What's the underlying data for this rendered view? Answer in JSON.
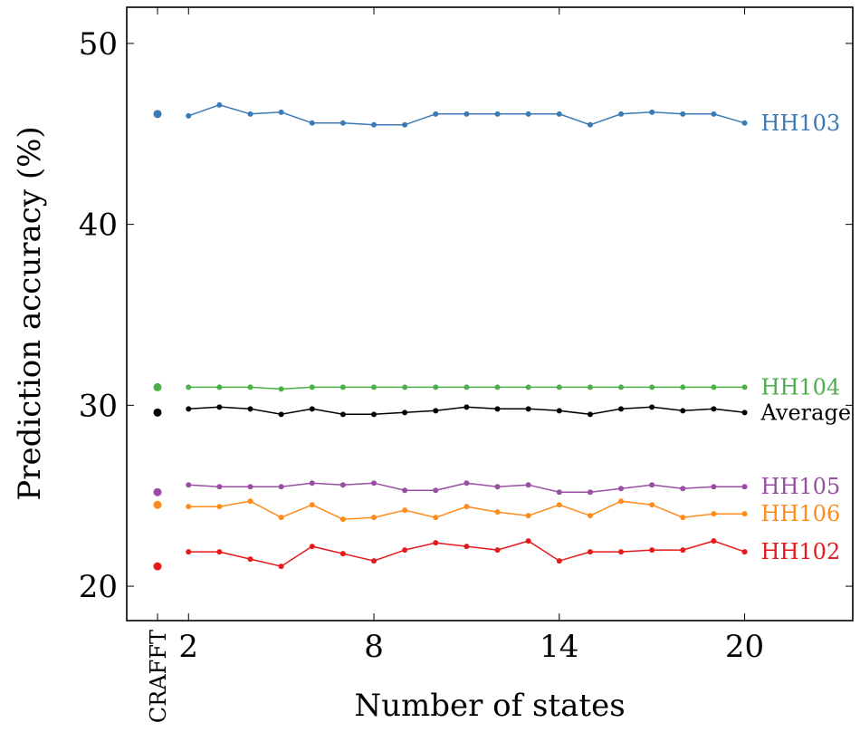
{
  "chart_data": {
    "type": "line",
    "xlabel": "Number of states",
    "ylabel": "Prediction accuracy (%)",
    "xlim": [
      0,
      23.5
    ],
    "ylim": [
      18.1,
      52
    ],
    "xticks": [
      2,
      8,
      14,
      20
    ],
    "yticks": [
      20,
      30,
      40,
      50
    ],
    "baseline_label": "CRAFFT",
    "x": [
      2,
      3,
      4,
      5,
      6,
      7,
      8,
      9,
      10,
      11,
      12,
      13,
      14,
      15,
      16,
      17,
      18,
      19,
      20
    ],
    "series": [
      {
        "name": "HH103",
        "color": "#3a7ab5",
        "baseline": 46.1,
        "values": [
          46.0,
          46.6,
          46.1,
          46.2,
          45.6,
          45.6,
          45.5,
          45.5,
          46.1,
          46.1,
          46.1,
          46.1,
          46.1,
          45.5,
          46.1,
          46.2,
          46.1,
          46.1,
          45.6
        ]
      },
      {
        "name": "HH104",
        "color": "#4daf4a",
        "baseline": 31.0,
        "values": [
          31.0,
          31.0,
          31.0,
          30.9,
          31.0,
          31.0,
          31.0,
          31.0,
          31.0,
          31.0,
          31.0,
          31.0,
          31.0,
          31.0,
          31.0,
          31.0,
          31.0,
          31.0,
          31.0
        ]
      },
      {
        "name": "Average",
        "color": "#000000",
        "baseline": 29.6,
        "values": [
          29.8,
          29.9,
          29.8,
          29.5,
          29.8,
          29.5,
          29.5,
          29.6,
          29.7,
          29.9,
          29.8,
          29.8,
          29.7,
          29.5,
          29.8,
          29.9,
          29.7,
          29.8,
          29.6
        ]
      },
      {
        "name": "HH105",
        "color": "#984ea3",
        "baseline": 25.2,
        "values": [
          25.6,
          25.5,
          25.5,
          25.5,
          25.7,
          25.6,
          25.7,
          25.3,
          25.3,
          25.7,
          25.5,
          25.6,
          25.2,
          25.2,
          25.4,
          25.6,
          25.4,
          25.5,
          25.5
        ]
      },
      {
        "name": "HH106",
        "color": "#ff8c1a",
        "baseline": 24.5,
        "values": [
          24.4,
          24.4,
          24.7,
          23.8,
          24.5,
          23.7,
          23.8,
          24.2,
          23.8,
          24.4,
          24.1,
          23.9,
          24.5,
          23.9,
          24.7,
          24.5,
          23.8,
          24.0,
          24.0
        ]
      },
      {
        "name": "HH102",
        "color": "#e41a1c",
        "baseline": 21.1,
        "values": [
          21.9,
          21.9,
          21.5,
          21.1,
          22.2,
          21.8,
          21.4,
          22.0,
          22.4,
          22.2,
          22.0,
          22.5,
          21.4,
          21.9,
          21.9,
          22.0,
          22.0,
          22.5,
          21.9
        ]
      }
    ]
  }
}
